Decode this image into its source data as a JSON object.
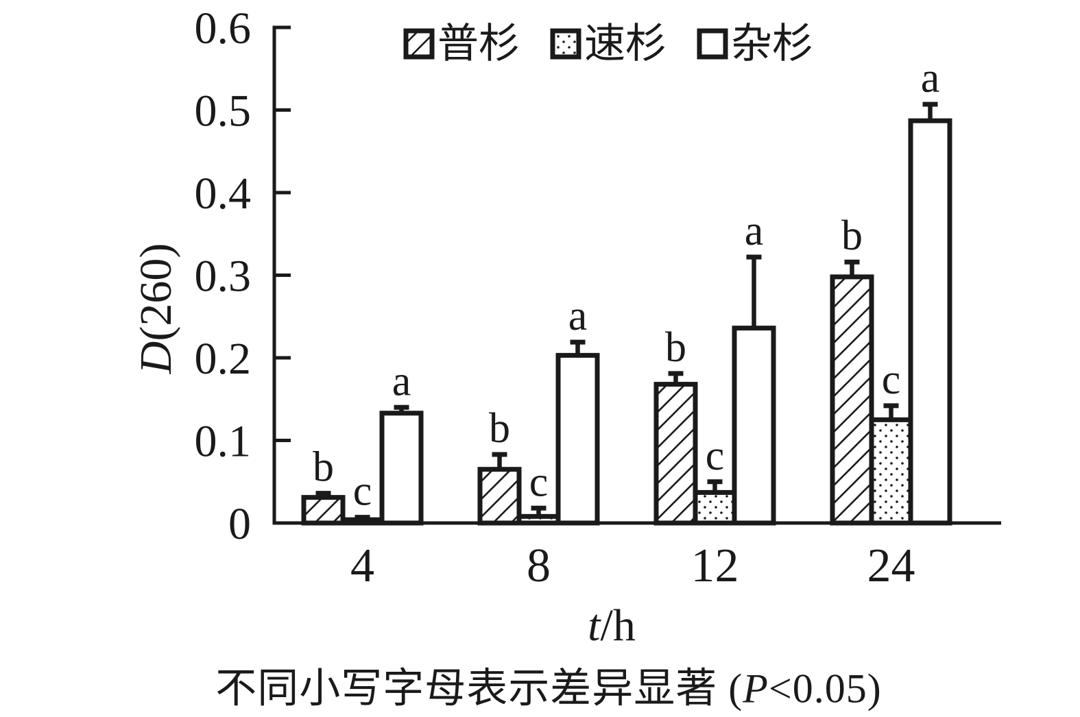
{
  "figure": {
    "background": "#ffffff",
    "ink": "#1a1a1a"
  },
  "legend": {
    "items": [
      {
        "label": "普杉",
        "pattern": "hatch"
      },
      {
        "label": "速杉",
        "pattern": "dots"
      },
      {
        "label": "杂杉",
        "pattern": "plain"
      }
    ]
  },
  "axes": {
    "y_title_italic": "D",
    "y_title_rest": "(260)",
    "x_title_italic": "t",
    "x_title_rest": "/h"
  },
  "caption": {
    "zh": "不同小写字母表示差异显著",
    "open": " (",
    "p_italic": "P",
    "rest": "<0.05)"
  },
  "chart_data": {
    "type": "bar",
    "title": "",
    "xlabel": "t/h",
    "ylabel": "D(260)",
    "categories": [
      "4",
      "8",
      "12",
      "24"
    ],
    "ylim": [
      0,
      0.6
    ],
    "yticks": [
      0,
      0.1,
      0.2,
      0.3,
      0.4,
      0.5,
      0.6
    ],
    "grid": false,
    "legend_position": "top-center",
    "error_bars": "upper-only",
    "series": [
      {
        "name": "普杉",
        "pattern": "hatch",
        "values": [
          0.031,
          0.065,
          0.168,
          0.298
        ],
        "errors": [
          0.005,
          0.018,
          0.013,
          0.018
        ],
        "letters": [
          "b",
          "b",
          "b",
          "b"
        ]
      },
      {
        "name": "速杉",
        "pattern": "dots",
        "values": [
          0.004,
          0.008,
          0.037,
          0.125
        ],
        "errors": [
          0.003,
          0.01,
          0.013,
          0.017
        ],
        "letters": [
          "c",
          "c",
          "c",
          "c"
        ]
      },
      {
        "name": "杂杉",
        "pattern": "plain",
        "values": [
          0.133,
          0.203,
          0.236,
          0.487
        ],
        "errors": [
          0.007,
          0.016,
          0.086,
          0.02
        ],
        "letters": [
          "a",
          "a",
          "a",
          "a"
        ]
      }
    ]
  }
}
